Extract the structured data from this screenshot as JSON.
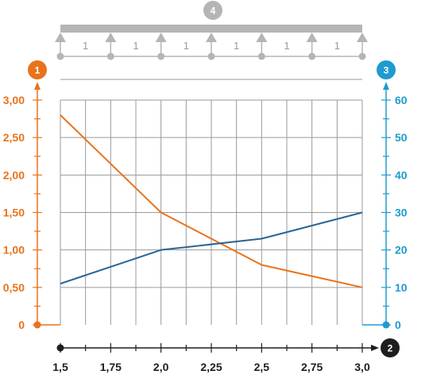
{
  "colors": {
    "left_axis": "#e8731c",
    "right_axis": "#1f9bcf",
    "bottom_axis": "#1e1e1e",
    "grid": "#9a9a9a",
    "beam": "#b5b5b5",
    "series_decreasing": "#e8731c",
    "series_increasing": "#2a6496"
  },
  "badges": {
    "left": "1",
    "bottom": "2",
    "right": "3",
    "top": "4"
  },
  "beam": {
    "span_labels": [
      "1",
      "1",
      "1",
      "1",
      "1",
      "1"
    ]
  },
  "chart_data": {
    "type": "line",
    "x": [
      1.5,
      2.0,
      2.5,
      3.0
    ],
    "x_tick_labels": [
      "1,5",
      "1,75",
      "2,0",
      "2,25",
      "2,5",
      "2,75",
      "3,0"
    ],
    "xlim": [
      1.5,
      3.0
    ],
    "y_left_tick_labels": [
      "0",
      "0,50",
      "1,00",
      "1,50",
      "2,00",
      "2,50",
      "3,00"
    ],
    "ylim_left": [
      0,
      3
    ],
    "y_right_tick_labels": [
      "0",
      "10",
      "20",
      "30",
      "40",
      "50",
      "60"
    ],
    "ylim_right": [
      0,
      60
    ],
    "grid": true,
    "series": [
      {
        "axis": "left",
        "color": "#e8731c",
        "values": [
          2.8,
          1.5,
          0.8,
          0.5
        ]
      },
      {
        "axis": "right",
        "color": "#2a6496",
        "values": [
          11,
          20,
          23,
          30
        ]
      }
    ]
  }
}
